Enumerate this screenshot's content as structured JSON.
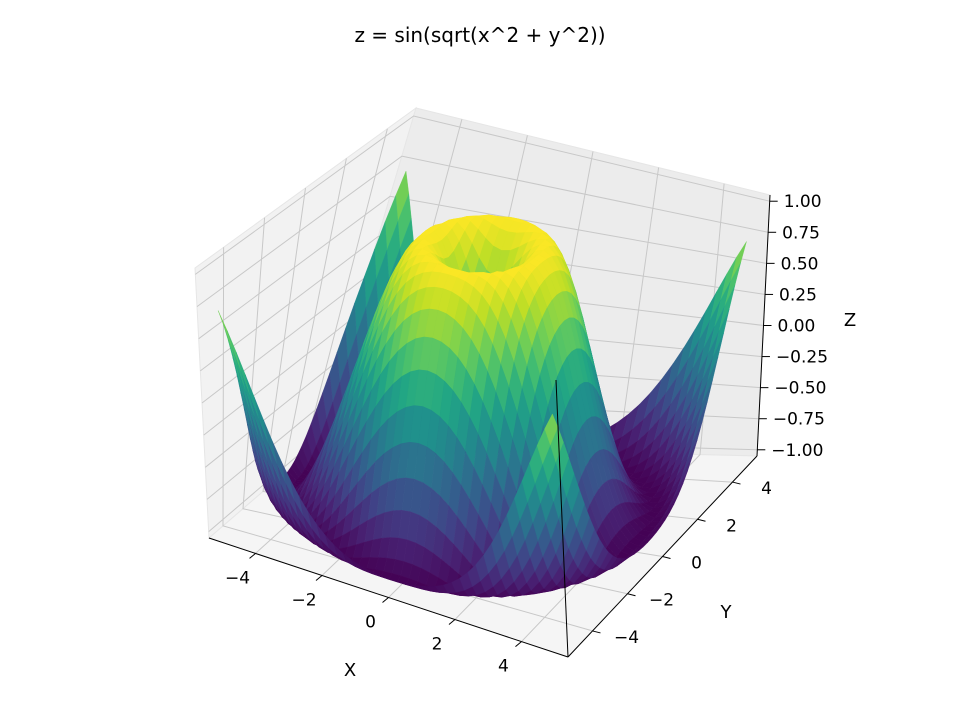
{
  "chart_data": {
    "type": "surface3d",
    "title": "z = sin(sqrt(x^2 + y^2))",
    "function": "sin(sqrt(x^2 + y^2))",
    "xlabel": "X",
    "ylabel": "Y",
    "zlabel": "Z",
    "xlim": [
      -5.4,
      5.4
    ],
    "ylim": [
      -5.4,
      5.4
    ],
    "zlim": [
      -1.05,
      1.05
    ],
    "x_domain": [
      -5,
      5
    ],
    "y_domain": [
      -5,
      5
    ],
    "grid_points": 40,
    "x_ticks": [
      -4,
      -2,
      0,
      2,
      4
    ],
    "x_tick_labels": [
      "−4",
      "−2",
      "0",
      "2",
      "4"
    ],
    "y_ticks": [
      -4,
      -2,
      0,
      2,
      4
    ],
    "y_tick_labels": [
      "−4",
      "−2",
      "0",
      "2",
      "4"
    ],
    "z_ticks": [
      -1.0,
      -0.75,
      -0.5,
      -0.25,
      0.0,
      0.25,
      0.5,
      0.75,
      1.0
    ],
    "z_tick_labels": [
      "−1.00",
      "−0.75",
      "−0.50",
      "−0.25",
      "0.00",
      "0.25",
      "0.50",
      "0.75",
      "1.00"
    ],
    "colormap": "viridis",
    "grid": true,
    "pane_color": "#f2f2f2",
    "grid_color": "#c8c8c8"
  }
}
